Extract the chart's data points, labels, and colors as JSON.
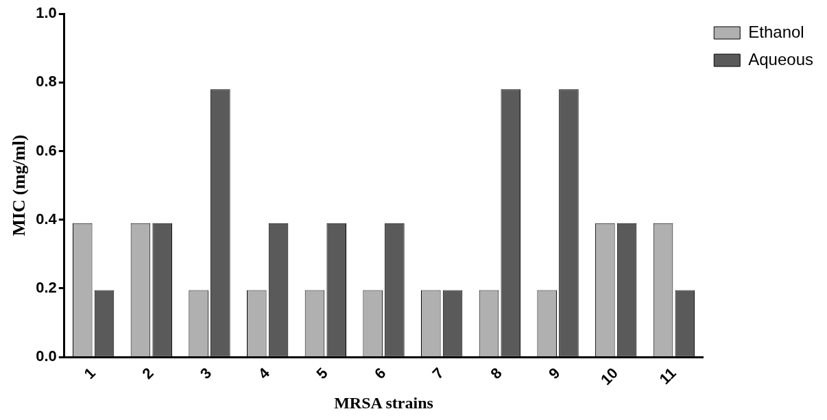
{
  "chart_data": {
    "type": "bar",
    "xlabel": "MRSA strains",
    "ylabel": "MIC (mg/ml)",
    "categories": [
      "1",
      "2",
      "3",
      "4",
      "5",
      "6",
      "7",
      "8",
      "9",
      "10",
      "11"
    ],
    "series": [
      {
        "name": "Ethanol",
        "color": "#b0b0b0",
        "values": [
          0.39,
          0.39,
          0.195,
          0.195,
          0.195,
          0.195,
          0.195,
          0.195,
          0.195,
          0.39,
          0.39
        ]
      },
      {
        "name": "Aqueous",
        "color": "#5a5a5a",
        "values": [
          0.195,
          0.39,
          0.78,
          0.39,
          0.39,
          0.39,
          0.195,
          0.78,
          0.78,
          0.39,
          0.195
        ]
      }
    ],
    "ylim": [
      0,
      1
    ],
    "yticks": [
      {
        "value": 0,
        "label": "0.0"
      },
      {
        "value": 0.2,
        "label": "0.2"
      },
      {
        "value": 0.4,
        "label": "0.4"
      },
      {
        "value": 0.6,
        "label": "0.6"
      },
      {
        "value": 0.8,
        "label": "0.8"
      },
      {
        "value": 1,
        "label": "1.0"
      }
    ],
    "grid": false,
    "legend": "top right"
  }
}
